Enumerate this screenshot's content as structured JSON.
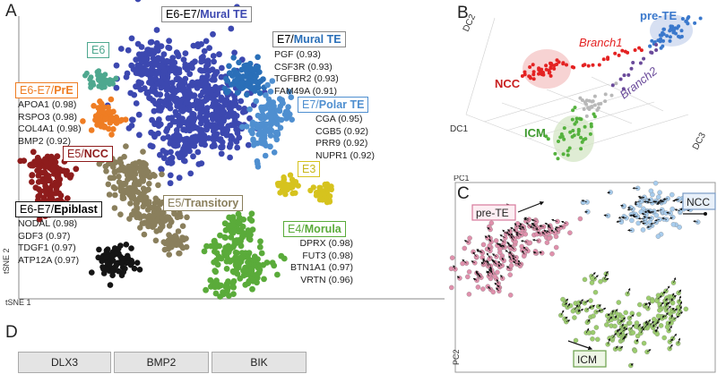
{
  "panels": {
    "A": "A",
    "B": "B",
    "C": "C",
    "D": "D"
  },
  "panelA": {
    "x_axis_label": "tSNE 1",
    "y_axis_label": "tSNE 2",
    "clusters": [
      {
        "stage": "E6-E7/",
        "lineage": "Mural TE",
        "color": "#3c48b0",
        "genes": []
      },
      {
        "stage": "E6",
        "lineage": "",
        "color": "#4ea88f",
        "genes": []
      },
      {
        "stage": "E7/",
        "lineage": "Mural TE",
        "color": "#2a6fb8",
        "genes": [
          "PGF (0.93)",
          "CSF3R (0.93)",
          "TGFBR2 (0.93)",
          "FAM49A (0.91)"
        ]
      },
      {
        "stage": "E6-E7/",
        "lineage": "PrE",
        "color": "#ef7d23",
        "genes": [
          "APOA1 (0.98)",
          "RSPO3 (0.98)",
          "COL4A1 (0.98)",
          "BMP2 (0.92)"
        ]
      },
      {
        "stage": "E7/",
        "lineage": "Polar TE",
        "color": "#4f8fd0",
        "genes": [
          "CGA (0.95)",
          "CGB5 (0.92)",
          "PRR9 (0.92)",
          "NUPR1 (0.92)"
        ]
      },
      {
        "stage": "E5/",
        "lineage": "NCC",
        "color": "#8e1c1c",
        "genes": []
      },
      {
        "stage": "E3",
        "lineage": "",
        "color": "#d6c31e",
        "genes": []
      },
      {
        "stage": "E5/",
        "lineage": "Transitory",
        "color": "#8a7f5c",
        "genes": []
      },
      {
        "stage": "E4/",
        "lineage": "Morula",
        "color": "#5aab3a",
        "genes": [
          "DPRX (0.98)",
          "FUT3 (0.98)",
          "BTN1A1 (0.97)",
          "VRTN (0.96)"
        ]
      },
      {
        "stage": "E6-E7/",
        "lineage": "Epiblast",
        "color": "#151515",
        "genes": [
          "NODAL (0.98)",
          "GDF3 (0.97)",
          "TDGF1 (0.97)",
          "ATP12A (0.97)"
        ]
      }
    ]
  },
  "panelB": {
    "axis_labels": {
      "dc1": "DC1",
      "dc2": "DC2",
      "dc3": "DC3"
    },
    "labels": {
      "pre_te": "pre-TE",
      "branch1": "Branch1",
      "branch2": "Branch2",
      "ncc": "NCC",
      "icm": "ICM"
    },
    "colors": {
      "pre_te": "#3a78cc",
      "ncc": "#e42222",
      "icm": "#55b23e",
      "branch2": "#6a4a9a",
      "grey": "#b8b8b8"
    }
  },
  "panelC": {
    "axis_labels": {
      "pc1": "PC1",
      "pc2": "PC2"
    },
    "labels": {
      "pre_te": "pre-TE",
      "ncc": "NCC",
      "icm": "ICM"
    },
    "colors": {
      "pre_te": "#e090ac",
      "ncc": "#a8cdee",
      "icm": "#9ccd6e"
    }
  },
  "panelD": {
    "tabs": [
      "DLX3",
      "BMP2",
      "BIK"
    ]
  }
}
